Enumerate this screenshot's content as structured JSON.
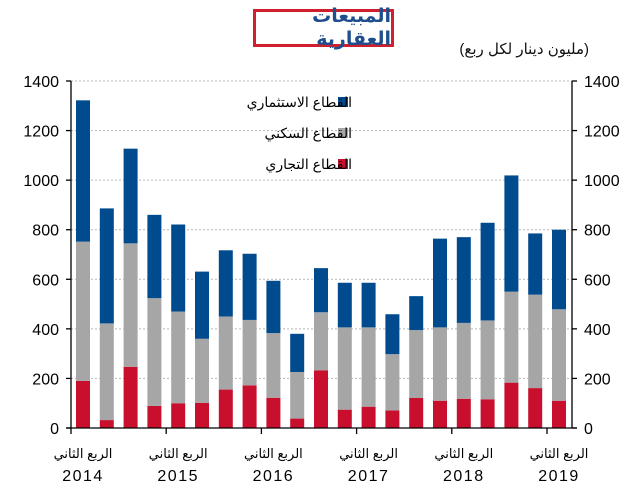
{
  "title": "المبيعات العقارية",
  "unit_label": "(مليون دينار لكل ربع)",
  "colors": {
    "investment": "#004b8d",
    "residential": "#a6a6a6",
    "commercial": "#c8102e",
    "title_border": "#d0202e",
    "title_text": "#1f4e8c"
  },
  "chart_data": {
    "type": "bar",
    "stacked": true,
    "title": "المبيعات العقارية",
    "ylabel": "(مليون دينار لكل ربع)",
    "xlabel": "",
    "ylim": [
      0,
      1400
    ],
    "yticks": [
      0,
      200,
      400,
      600,
      800,
      1000,
      1200,
      1400
    ],
    "y_axes": [
      "left",
      "right"
    ],
    "grid": "horizontal dotted",
    "legend_position": "top-right",
    "categories": [
      "Q2 2014",
      "Q3 2014",
      "Q4 2014",
      "Q1 2015",
      "Q2 2015",
      "Q3 2015",
      "Q4 2015",
      "Q1 2016",
      "Q2 2016",
      "Q3 2016",
      "Q4 2016",
      "Q1 2017",
      "Q2 2017",
      "Q3 2017",
      "Q4 2017",
      "Q1 2018",
      "Q2 2018",
      "Q3 2018",
      "Q4 2018",
      "Q1 2019",
      "Q2 2019"
    ],
    "x_tick_labels": [
      {
        "quarter": "الربع الثاني",
        "year": "2014",
        "index": 0
      },
      {
        "quarter": "الربع الثاني",
        "year": "2015",
        "index": 4
      },
      {
        "quarter": "الربع الثاني",
        "year": "2016",
        "index": 8
      },
      {
        "quarter": "الربع الثاني",
        "year": "2017",
        "index": 12
      },
      {
        "quarter": "الربع الثاني",
        "year": "2018",
        "index": 16
      },
      {
        "quarter": "الربع الثاني",
        "year": "2019",
        "index": 20
      }
    ],
    "series": [
      {
        "name": "القطاع التجاري",
        "key": "commercial",
        "values": [
          190,
          32,
          247,
          89,
          100,
          101,
          155,
          172,
          122,
          38,
          233,
          74,
          86,
          71,
          121,
          110,
          118,
          116,
          183,
          161,
          110
        ]
      },
      {
        "name": "القطاع السكني",
        "key": "residential",
        "values": [
          562,
          390,
          498,
          435,
          370,
          259,
          295,
          264,
          261,
          188,
          234,
          332,
          320,
          227,
          274,
          296,
          306,
          318,
          367,
          377,
          369
        ]
      },
      {
        "name": "القطاع الاستثماري",
        "key": "investment",
        "values": [
          570,
          464,
          382,
          336,
          351,
          271,
          267,
          267,
          211,
          154,
          178,
          180,
          180,
          161,
          137,
          358,
          346,
          394,
          469,
          247,
          321
        ]
      }
    ],
    "totals": [
      1322,
      886,
      1127,
      860,
      821,
      631,
      717,
      703,
      594,
      380,
      645,
      586,
      586,
      459,
      532,
      764,
      770,
      828,
      1019,
      785,
      800
    ],
    "legend": [
      {
        "label": "القطاع الاستثماري",
        "key": "investment"
      },
      {
        "label": "القطاع السكني",
        "key": "residential"
      },
      {
        "label": "القطاع التجاري",
        "key": "commercial"
      }
    ]
  }
}
